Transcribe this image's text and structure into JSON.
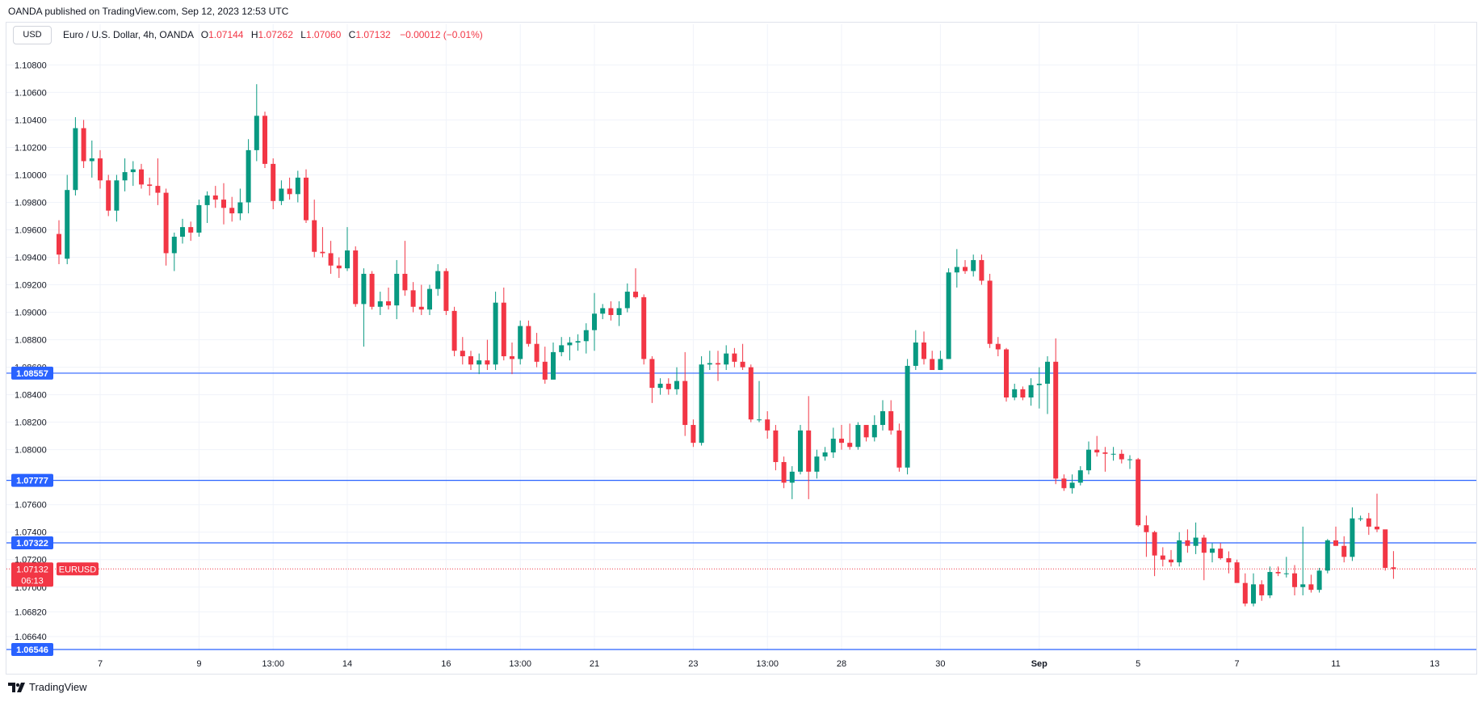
{
  "header": {
    "publisher_line": "OANDA published on TradingView.com, Sep 12, 2023 12:53 UTC",
    "currency_button": "USD",
    "symbol_label": "Euro / U.S. Dollar, 4h, OANDA",
    "ohlc": [
      {
        "key": "O",
        "value": "1.07144"
      },
      {
        "key": "H",
        "value": "1.07262"
      },
      {
        "key": "L",
        "value": "1.07060"
      },
      {
        "key": "C",
        "value": "1.07132"
      }
    ],
    "change": "−0.00012 (−0.01%)"
  },
  "footer": {
    "brand": "TradingView"
  },
  "colors": {
    "up": "#089981",
    "down": "#f23645",
    "hline": "#2962ff",
    "grid": "#f0f3fa"
  },
  "chart_data": {
    "type": "candlestick",
    "symbol": "EURUSD",
    "interval": "4h",
    "ylim": [
      1.0654,
      1.1092
    ],
    "y_ticks": [
      "1.06640",
      "1.06820",
      "1.07000",
      "1.07200",
      "1.07400",
      "1.07600",
      "1.07800",
      "1.08000",
      "1.08200",
      "1.08400",
      "1.08600",
      "1.08800",
      "1.09000",
      "1.09200",
      "1.09400",
      "1.09600",
      "1.09800",
      "1.10000",
      "1.10200",
      "1.10400",
      "1.10600",
      "1.10800"
    ],
    "x_ticks": [
      {
        "label": "7",
        "index": 5
      },
      {
        "label": "9",
        "index": 17
      },
      {
        "label": "13:00",
        "index": 26
      },
      {
        "label": "14",
        "index": 35
      },
      {
        "label": "16",
        "index": 47
      },
      {
        "label": "13:00",
        "index": 56
      },
      {
        "label": "21",
        "index": 65
      },
      {
        "label": "23",
        "index": 77
      },
      {
        "label": "13:00",
        "index": 86
      },
      {
        "label": "28",
        "index": 95
      },
      {
        "label": "30",
        "index": 107
      },
      {
        "label": "Sep",
        "index": 119
      },
      {
        "label": "5",
        "index": 131
      },
      {
        "label": "7",
        "index": 143
      },
      {
        "label": "11",
        "index": 155
      },
      {
        "label": "13",
        "index": 167
      }
    ],
    "horizontal_levels": [
      {
        "price": 1.08557,
        "label": "1.08557"
      },
      {
        "price": 1.07777,
        "label": "1.07777"
      },
      {
        "price": 1.07322,
        "label": "1.07322"
      },
      {
        "price": 1.06546,
        "label": "1.06546"
      }
    ],
    "last_price": {
      "price": 1.07132,
      "label": "1.07132",
      "countdown": "06:13",
      "symbol_tag": "EURUSD"
    },
    "candles": [
      {
        "o": 1.0957,
        "h": 1.0967,
        "l": 1.0935,
        "c": 1.0942
      },
      {
        "o": 1.0939,
        "h": 1.1,
        "l": 1.0935,
        "c": 1.0989
      },
      {
        "o": 1.0989,
        "h": 1.1042,
        "l": 1.0985,
        "c": 1.1034
      },
      {
        "o": 1.1034,
        "h": 1.104,
        "l": 1.1005,
        "c": 1.101
      },
      {
        "o": 1.101,
        "h": 1.1025,
        "l": 1.0998,
        "c": 1.1012
      },
      {
        "o": 1.1012,
        "h": 1.1018,
        "l": 1.099,
        "c": 1.0996
      },
      {
        "o": 1.0996,
        "h": 1.1,
        "l": 1.097,
        "c": 1.0974
      },
      {
        "o": 1.0974,
        "h": 1.1,
        "l": 1.0966,
        "c": 1.0996
      },
      {
        "o": 1.0996,
        "h": 1.1012,
        "l": 1.0988,
        "c": 1.1002
      },
      {
        "o": 1.1002,
        "h": 1.101,
        "l": 1.0992,
        "c": 1.1004
      },
      {
        "o": 1.1004,
        "h": 1.1008,
        "l": 1.099,
        "c": 1.0993
      },
      {
        "o": 1.0993,
        "h": 1.0998,
        "l": 1.0985,
        "c": 1.0992
      },
      {
        "o": 1.0992,
        "h": 1.1012,
        "l": 1.0978,
        "c": 1.0987
      },
      {
        "o": 1.0987,
        "h": 1.099,
        "l": 1.0934,
        "c": 1.0943
      },
      {
        "o": 1.0943,
        "h": 1.0958,
        "l": 1.093,
        "c": 1.0955
      },
      {
        "o": 1.0955,
        "h": 1.0968,
        "l": 1.095,
        "c": 1.0962
      },
      {
        "o": 1.0962,
        "h": 1.0966,
        "l": 1.0952,
        "c": 1.0958
      },
      {
        "o": 1.0958,
        "h": 1.0982,
        "l": 1.0955,
        "c": 1.0978
      },
      {
        "o": 1.0978,
        "h": 1.0988,
        "l": 1.0965,
        "c": 1.0985
      },
      {
        "o": 1.0985,
        "h": 1.0992,
        "l": 1.0976,
        "c": 1.0982
      },
      {
        "o": 1.0982,
        "h": 1.0994,
        "l": 1.0964,
        "c": 1.0976
      },
      {
        "o": 1.0976,
        "h": 1.0984,
        "l": 1.0966,
        "c": 1.0972
      },
      {
        "o": 1.0972,
        "h": 1.099,
        "l": 1.0967,
        "c": 1.098
      },
      {
        "o": 1.098,
        "h": 1.1026,
        "l": 1.0972,
        "c": 1.1018
      },
      {
        "o": 1.1018,
        "h": 1.1066,
        "l": 1.101,
        "c": 1.1043
      },
      {
        "o": 1.1043,
        "h": 1.1046,
        "l": 1.1005,
        "c": 1.1008
      },
      {
        "o": 1.1008,
        "h": 1.1012,
        "l": 1.0975,
        "c": 1.0981
      },
      {
        "o": 1.0981,
        "h": 1.0996,
        "l": 1.0978,
        "c": 1.099
      },
      {
        "o": 1.099,
        "h": 1.0998,
        "l": 1.0982,
        "c": 1.0986
      },
      {
        "o": 1.0986,
        "h": 1.1003,
        "l": 1.098,
        "c": 1.0998
      },
      {
        "o": 1.0998,
        "h": 1.1004,
        "l": 1.0965,
        "c": 1.0967
      },
      {
        "o": 1.0967,
        "h": 1.0982,
        "l": 1.094,
        "c": 1.0944
      },
      {
        "o": 1.0944,
        "h": 1.0962,
        "l": 1.094,
        "c": 1.0943
      },
      {
        "o": 1.0943,
        "h": 1.0952,
        "l": 1.0928,
        "c": 1.0934
      },
      {
        "o": 1.0934,
        "h": 1.094,
        "l": 1.0925,
        "c": 1.0932
      },
      {
        "o": 1.0932,
        "h": 1.0962,
        "l": 1.093,
        "c": 1.0945
      },
      {
        "o": 1.0945,
        "h": 1.0948,
        "l": 1.0904,
        "c": 1.0906
      },
      {
        "o": 1.0906,
        "h": 1.0932,
        "l": 1.0875,
        "c": 1.0928
      },
      {
        "o": 1.0928,
        "h": 1.093,
        "l": 1.0902,
        "c": 1.0904
      },
      {
        "o": 1.0904,
        "h": 1.0915,
        "l": 1.0898,
        "c": 1.0908
      },
      {
        "o": 1.0908,
        "h": 1.0918,
        "l": 1.0902,
        "c": 1.0905
      },
      {
        "o": 1.0905,
        "h": 1.0938,
        "l": 1.0895,
        "c": 1.0928
      },
      {
        "o": 1.0928,
        "h": 1.0952,
        "l": 1.0912,
        "c": 1.0916
      },
      {
        "o": 1.0916,
        "h": 1.0922,
        "l": 1.09,
        "c": 1.0904
      },
      {
        "o": 1.0904,
        "h": 1.092,
        "l": 1.0898,
        "c": 1.0902
      },
      {
        "o": 1.0902,
        "h": 1.092,
        "l": 1.0898,
        "c": 1.0917
      },
      {
        "o": 1.0917,
        "h": 1.0935,
        "l": 1.0912,
        "c": 1.093
      },
      {
        "o": 1.093,
        "h": 1.0932,
        "l": 1.0898,
        "c": 1.0901
      },
      {
        "o": 1.0901,
        "h": 1.0904,
        "l": 1.0868,
        "c": 1.0872
      },
      {
        "o": 1.0872,
        "h": 1.0882,
        "l": 1.0862,
        "c": 1.0868
      },
      {
        "o": 1.0868,
        "h": 1.0872,
        "l": 1.0858,
        "c": 1.0862
      },
      {
        "o": 1.0862,
        "h": 1.087,
        "l": 1.0855,
        "c": 1.0865
      },
      {
        "o": 1.0865,
        "h": 1.088,
        "l": 1.0858,
        "c": 1.0862
      },
      {
        "o": 1.0862,
        "h": 1.0915,
        "l": 1.0858,
        "c": 1.0907
      },
      {
        "o": 1.0907,
        "h": 1.0918,
        "l": 1.0865,
        "c": 1.0868
      },
      {
        "o": 1.0868,
        "h": 1.0878,
        "l": 1.0855,
        "c": 1.0866
      },
      {
        "o": 1.0866,
        "h": 1.0894,
        "l": 1.0862,
        "c": 1.089
      },
      {
        "o": 1.089,
        "h": 1.0894,
        "l": 1.0875,
        "c": 1.0877
      },
      {
        "o": 1.0877,
        "h": 1.0885,
        "l": 1.086,
        "c": 1.0864
      },
      {
        "o": 1.0864,
        "h": 1.0875,
        "l": 1.0848,
        "c": 1.0851
      },
      {
        "o": 1.0851,
        "h": 1.0878,
        "l": 1.0851,
        "c": 1.0871
      },
      {
        "o": 1.0871,
        "h": 1.0882,
        "l": 1.0868,
        "c": 1.0876
      },
      {
        "o": 1.0876,
        "h": 1.0882,
        "l": 1.0865,
        "c": 1.0878
      },
      {
        "o": 1.0878,
        "h": 1.0884,
        "l": 1.0872,
        "c": 1.0879
      },
      {
        "o": 1.0879,
        "h": 1.0892,
        "l": 1.087,
        "c": 1.0887
      },
      {
        "o": 1.0887,
        "h": 1.0914,
        "l": 1.0872,
        "c": 1.0899
      },
      {
        "o": 1.0899,
        "h": 1.0906,
        "l": 1.0895,
        "c": 1.0903
      },
      {
        "o": 1.0903,
        "h": 1.0908,
        "l": 1.0894,
        "c": 1.0898
      },
      {
        "o": 1.0898,
        "h": 1.0908,
        "l": 1.089,
        "c": 1.0903
      },
      {
        "o": 1.0903,
        "h": 1.0921,
        "l": 1.09,
        "c": 1.0915
      },
      {
        "o": 1.0915,
        "h": 1.0932,
        "l": 1.091,
        "c": 1.0911
      },
      {
        "o": 1.0911,
        "h": 1.0913,
        "l": 1.0862,
        "c": 1.0866
      },
      {
        "o": 1.0866,
        "h": 1.0868,
        "l": 1.0834,
        "c": 1.0845
      },
      {
        "o": 1.0845,
        "h": 1.0852,
        "l": 1.084,
        "c": 1.0848
      },
      {
        "o": 1.0848,
        "h": 1.0852,
        "l": 1.084,
        "c": 1.0844
      },
      {
        "o": 1.0844,
        "h": 1.086,
        "l": 1.084,
        "c": 1.085
      },
      {
        "o": 1.085,
        "h": 1.0871,
        "l": 1.081,
        "c": 1.0818
      },
      {
        "o": 1.0818,
        "h": 1.0822,
        "l": 1.0802,
        "c": 1.0805
      },
      {
        "o": 1.0805,
        "h": 1.0868,
        "l": 1.0803,
        "c": 1.0862
      },
      {
        "o": 1.0862,
        "h": 1.0872,
        "l": 1.0858,
        "c": 1.0863
      },
      {
        "o": 1.0863,
        "h": 1.0872,
        "l": 1.085,
        "c": 1.0862
      },
      {
        "o": 1.0862,
        "h": 1.0876,
        "l": 1.0858,
        "c": 1.087
      },
      {
        "o": 1.087,
        "h": 1.0874,
        "l": 1.086,
        "c": 1.0864
      },
      {
        "o": 1.0864,
        "h": 1.0877,
        "l": 1.0858,
        "c": 1.086
      },
      {
        "o": 1.086,
        "h": 1.0862,
        "l": 1.082,
        "c": 1.0822
      },
      {
        "o": 1.0822,
        "h": 1.085,
        "l": 1.082,
        "c": 1.0822
      },
      {
        "o": 1.0822,
        "h": 1.0828,
        "l": 1.0808,
        "c": 1.0814
      },
      {
        "o": 1.0814,
        "h": 1.0818,
        "l": 1.0785,
        "c": 1.0791
      },
      {
        "o": 1.0791,
        "h": 1.0795,
        "l": 1.0772,
        "c": 1.0776
      },
      {
        "o": 1.0776,
        "h": 1.0788,
        "l": 1.0764,
        "c": 1.0784
      },
      {
        "o": 1.0784,
        "h": 1.0818,
        "l": 1.0782,
        "c": 1.0814
      },
      {
        "o": 1.0814,
        "h": 1.0839,
        "l": 1.0764,
        "c": 1.0784
      },
      {
        "o": 1.0784,
        "h": 1.08,
        "l": 1.0779,
        "c": 1.0795
      },
      {
        "o": 1.0795,
        "h": 1.0802,
        "l": 1.0792,
        "c": 1.0798
      },
      {
        "o": 1.0798,
        "h": 1.0816,
        "l": 1.0794,
        "c": 1.0808
      },
      {
        "o": 1.0808,
        "h": 1.0818,
        "l": 1.08,
        "c": 1.0805
      },
      {
        "o": 1.0805,
        "h": 1.0819,
        "l": 1.08,
        "c": 1.0802
      },
      {
        "o": 1.0802,
        "h": 1.082,
        "l": 1.08,
        "c": 1.0818
      },
      {
        "o": 1.0818,
        "h": 1.0818,
        "l": 1.0806,
        "c": 1.0809
      },
      {
        "o": 1.0809,
        "h": 1.0825,
        "l": 1.0806,
        "c": 1.0818
      },
      {
        "o": 1.0818,
        "h": 1.0836,
        "l": 1.0814,
        "c": 1.0828
      },
      {
        "o": 1.0828,
        "h": 1.0836,
        "l": 1.0811,
        "c": 1.0814
      },
      {
        "o": 1.0814,
        "h": 1.0819,
        "l": 1.0784,
        "c": 1.0787
      },
      {
        "o": 1.0787,
        "h": 1.0866,
        "l": 1.0782,
        "c": 1.0861
      },
      {
        "o": 1.0861,
        "h": 1.0887,
        "l": 1.0858,
        "c": 1.0878
      },
      {
        "o": 1.0878,
        "h": 1.0886,
        "l": 1.0862,
        "c": 1.0866
      },
      {
        "o": 1.0866,
        "h": 1.0872,
        "l": 1.0858,
        "c": 1.0858
      },
      {
        "o": 1.0858,
        "h": 1.0872,
        "l": 1.0858,
        "c": 1.0866
      },
      {
        "o": 1.0866,
        "h": 1.0932,
        "l": 1.0866,
        "c": 1.0929
      },
      {
        "o": 1.0929,
        "h": 1.0946,
        "l": 1.0918,
        "c": 1.0933
      },
      {
        "o": 1.0933,
        "h": 1.0938,
        "l": 1.0928,
        "c": 1.093
      },
      {
        "o": 1.093,
        "h": 1.0942,
        "l": 1.0926,
        "c": 1.0938
      },
      {
        "o": 1.0938,
        "h": 1.0942,
        "l": 1.092,
        "c": 1.0923
      },
      {
        "o": 1.0923,
        "h": 1.0928,
        "l": 1.0874,
        "c": 1.0877
      },
      {
        "o": 1.0877,
        "h": 1.0882,
        "l": 1.0868,
        "c": 1.0873
      },
      {
        "o": 1.0873,
        "h": 1.0874,
        "l": 1.0835,
        "c": 1.0838
      },
      {
        "o": 1.0838,
        "h": 1.0848,
        "l": 1.0836,
        "c": 1.0844
      },
      {
        "o": 1.0844,
        "h": 1.0846,
        "l": 1.0836,
        "c": 1.0838
      },
      {
        "o": 1.0838,
        "h": 1.0852,
        "l": 1.0832,
        "c": 1.0847
      },
      {
        "o": 1.0847,
        "h": 1.086,
        "l": 1.083,
        "c": 1.0848
      },
      {
        "o": 1.0848,
        "h": 1.0868,
        "l": 1.0826,
        "c": 1.0864
      },
      {
        "o": 1.0864,
        "h": 1.0881,
        "l": 1.0775,
        "c": 1.0779
      },
      {
        "o": 1.0779,
        "h": 1.0782,
        "l": 1.077,
        "c": 1.0772
      },
      {
        "o": 1.0772,
        "h": 1.0782,
        "l": 1.0768,
        "c": 1.0776
      },
      {
        "o": 1.0776,
        "h": 1.0788,
        "l": 1.0774,
        "c": 1.0785
      },
      {
        "o": 1.0785,
        "h": 1.0806,
        "l": 1.0782,
        "c": 1.08
      },
      {
        "o": 1.08,
        "h": 1.081,
        "l": 1.0795,
        "c": 1.0798
      },
      {
        "o": 1.0798,
        "h": 1.0802,
        "l": 1.0784,
        "c": 1.0797
      },
      {
        "o": 1.0797,
        "h": 1.0802,
        "l": 1.0792,
        "c": 1.0797
      },
      {
        "o": 1.0797,
        "h": 1.08,
        "l": 1.079,
        "c": 1.0793
      },
      {
        "o": 1.0793,
        "h": 1.0796,
        "l": 1.0786,
        "c": 1.0793
      },
      {
        "o": 1.0793,
        "h": 1.0794,
        "l": 1.0744,
        "c": 1.0745
      },
      {
        "o": 1.0745,
        "h": 1.0752,
        "l": 1.0722,
        "c": 1.074
      },
      {
        "o": 1.074,
        "h": 1.0741,
        "l": 1.0708,
        "c": 1.0723
      },
      {
        "o": 1.0723,
        "h": 1.0729,
        "l": 1.0715,
        "c": 1.072
      },
      {
        "o": 1.072,
        "h": 1.0727,
        "l": 1.0715,
        "c": 1.0718
      },
      {
        "o": 1.0718,
        "h": 1.074,
        "l": 1.0715,
        "c": 1.0734
      },
      {
        "o": 1.0734,
        "h": 1.0742,
        "l": 1.0725,
        "c": 1.073
      },
      {
        "o": 1.073,
        "h": 1.0747,
        "l": 1.0724,
        "c": 1.0736
      },
      {
        "o": 1.0736,
        "h": 1.0738,
        "l": 1.0705,
        "c": 1.0725
      },
      {
        "o": 1.0725,
        "h": 1.0732,
        "l": 1.0718,
        "c": 1.0728
      },
      {
        "o": 1.0728,
        "h": 1.0732,
        "l": 1.072,
        "c": 1.0721
      },
      {
        "o": 1.0721,
        "h": 1.0726,
        "l": 1.071,
        "c": 1.0718
      },
      {
        "o": 1.0718,
        "h": 1.072,
        "l": 1.0706,
        "c": 1.0703
      },
      {
        "o": 1.0703,
        "h": 1.071,
        "l": 1.0686,
        "c": 1.0688
      },
      {
        "o": 1.0688,
        "h": 1.071,
        "l": 1.0686,
        "c": 1.0702
      },
      {
        "o": 1.0702,
        "h": 1.0705,
        "l": 1.069,
        "c": 1.0694
      },
      {
        "o": 1.0694,
        "h": 1.0715,
        "l": 1.0692,
        "c": 1.0711
      },
      {
        "o": 1.0711,
        "h": 1.0715,
        "l": 1.0708,
        "c": 1.071
      },
      {
        "o": 1.071,
        "h": 1.0722,
        "l": 1.0707,
        "c": 1.071
      },
      {
        "o": 1.071,
        "h": 1.0716,
        "l": 1.0694,
        "c": 1.07
      },
      {
        "o": 1.07,
        "h": 1.0744,
        "l": 1.0694,
        "c": 1.0702
      },
      {
        "o": 1.0702,
        "h": 1.0709,
        "l": 1.0696,
        "c": 1.0698
      },
      {
        "o": 1.0698,
        "h": 1.0714,
        "l": 1.0696,
        "c": 1.0712
      },
      {
        "o": 1.0712,
        "h": 1.0735,
        "l": 1.071,
        "c": 1.0734
      },
      {
        "o": 1.0734,
        "h": 1.0744,
        "l": 1.073,
        "c": 1.073
      },
      {
        "o": 1.073,
        "h": 1.0737,
        "l": 1.0718,
        "c": 1.0722
      },
      {
        "o": 1.0722,
        "h": 1.0758,
        "l": 1.0719,
        "c": 1.075
      },
      {
        "o": 1.075,
        "h": 1.0752,
        "l": 1.0748,
        "c": 1.075
      },
      {
        "o": 1.075,
        "h": 1.0754,
        "l": 1.0738,
        "c": 1.0744
      },
      {
        "o": 1.0744,
        "h": 1.0768,
        "l": 1.074,
        "c": 1.0742
      },
      {
        "o": 1.0742,
        "h": 1.074,
        "l": 1.0712,
        "c": 1.0714
      },
      {
        "o": 1.07144,
        "h": 1.07262,
        "l": 1.0706,
        "c": 1.07132
      }
    ]
  }
}
